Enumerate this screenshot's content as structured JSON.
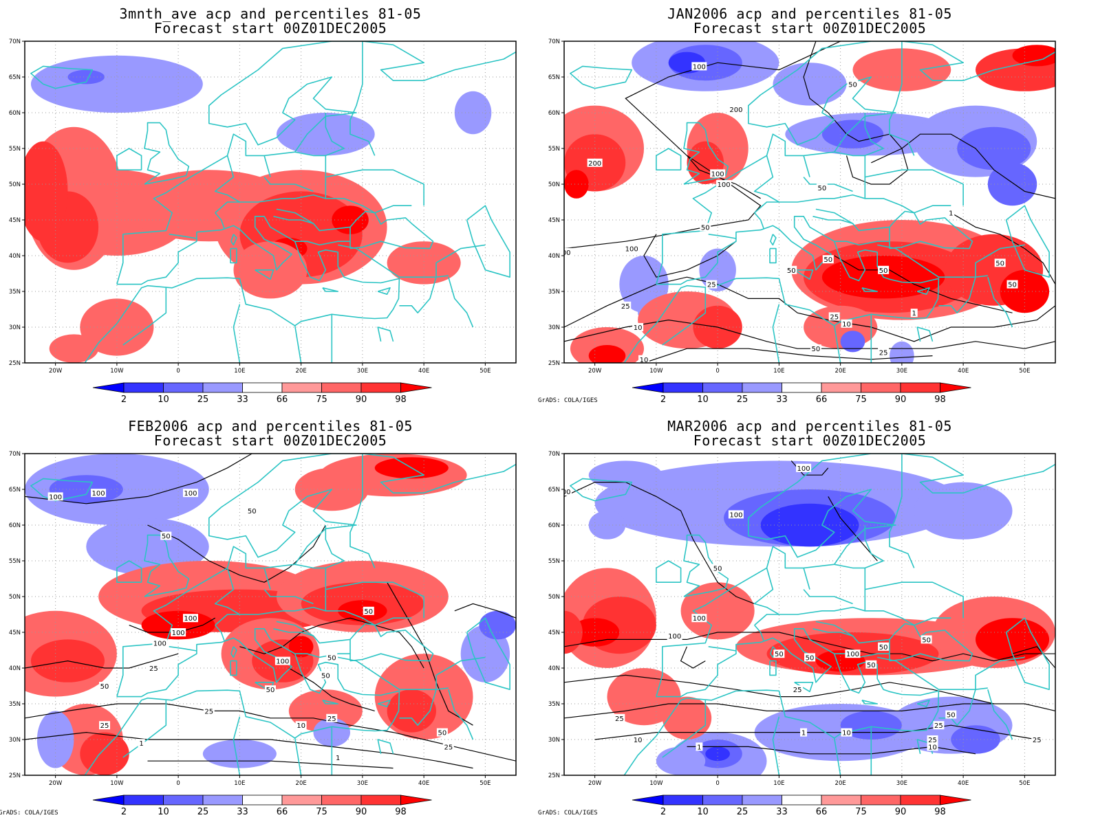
{
  "panels": [
    {
      "title": "3mnth_ave acp and percentiles 81-05",
      "subtitle": "Forecast start 00Z01DEC2005",
      "credit": ""
    },
    {
      "title": "JAN2006 acp and percentiles 81-05",
      "subtitle": "Forecast start 00Z01DEC2005",
      "credit": "GrADS: COLA/IGES"
    },
    {
      "title": "FEB2006 acp and percentiles 81-05",
      "subtitle": "Forecast start 00Z01DEC2005",
      "credit": "GrADS: COLA/IGES"
    },
    {
      "title": "MAR2006 acp and percentiles 81-05",
      "subtitle": "Forecast start 00Z01DEC2005",
      "credit": "GrADS: COLA/IGES"
    }
  ],
  "lat_labels": [
    "70N",
    "65N",
    "60N",
    "55N",
    "50N",
    "45N",
    "40N",
    "35N",
    "30N",
    "25N"
  ],
  "lon_labels": [
    "20W",
    "10W",
    "0",
    "10E",
    "20E",
    "30E",
    "40E",
    "50E"
  ],
  "colorbar": {
    "labels": [
      "2",
      "10",
      "25",
      "33",
      "66",
      "75",
      "90",
      "98"
    ],
    "colors": [
      "#0000ff",
      "#3333ff",
      "#6666ff",
      "#9999ff",
      "#ffffff",
      "#ff9999",
      "#ff6666",
      "#ff3333",
      "#ff0000"
    ]
  },
  "contour_labels": [
    [],
    [
      "100",
      "200",
      "50",
      "200",
      "100",
      "100",
      "50",
      "100",
      "100",
      "50",
      "50",
      "50",
      "50",
      "25",
      "25",
      "25",
      "10",
      "10",
      "50",
      "25",
      "10",
      "1",
      "1",
      "50",
      "50"
    ],
    [
      "100",
      "100",
      "100",
      "50",
      "50",
      "100",
      "100",
      "100",
      "100",
      "25",
      "50",
      "50",
      "50",
      "50",
      "50",
      "25",
      "25",
      "25",
      "10",
      "1",
      "50",
      "25",
      "1"
    ],
    [
      "100",
      "100",
      "100",
      "50",
      "100",
      "100",
      "50",
      "50",
      "100",
      "50",
      "50",
      "50",
      "25",
      "10",
      "25",
      "25",
      "10",
      "1",
      "1",
      "10",
      "50",
      "25",
      "25"
    ]
  ],
  "colors": {
    "coastline": "#2bc4c4",
    "contour": "#000000",
    "map_bg": "#ffffff"
  }
}
